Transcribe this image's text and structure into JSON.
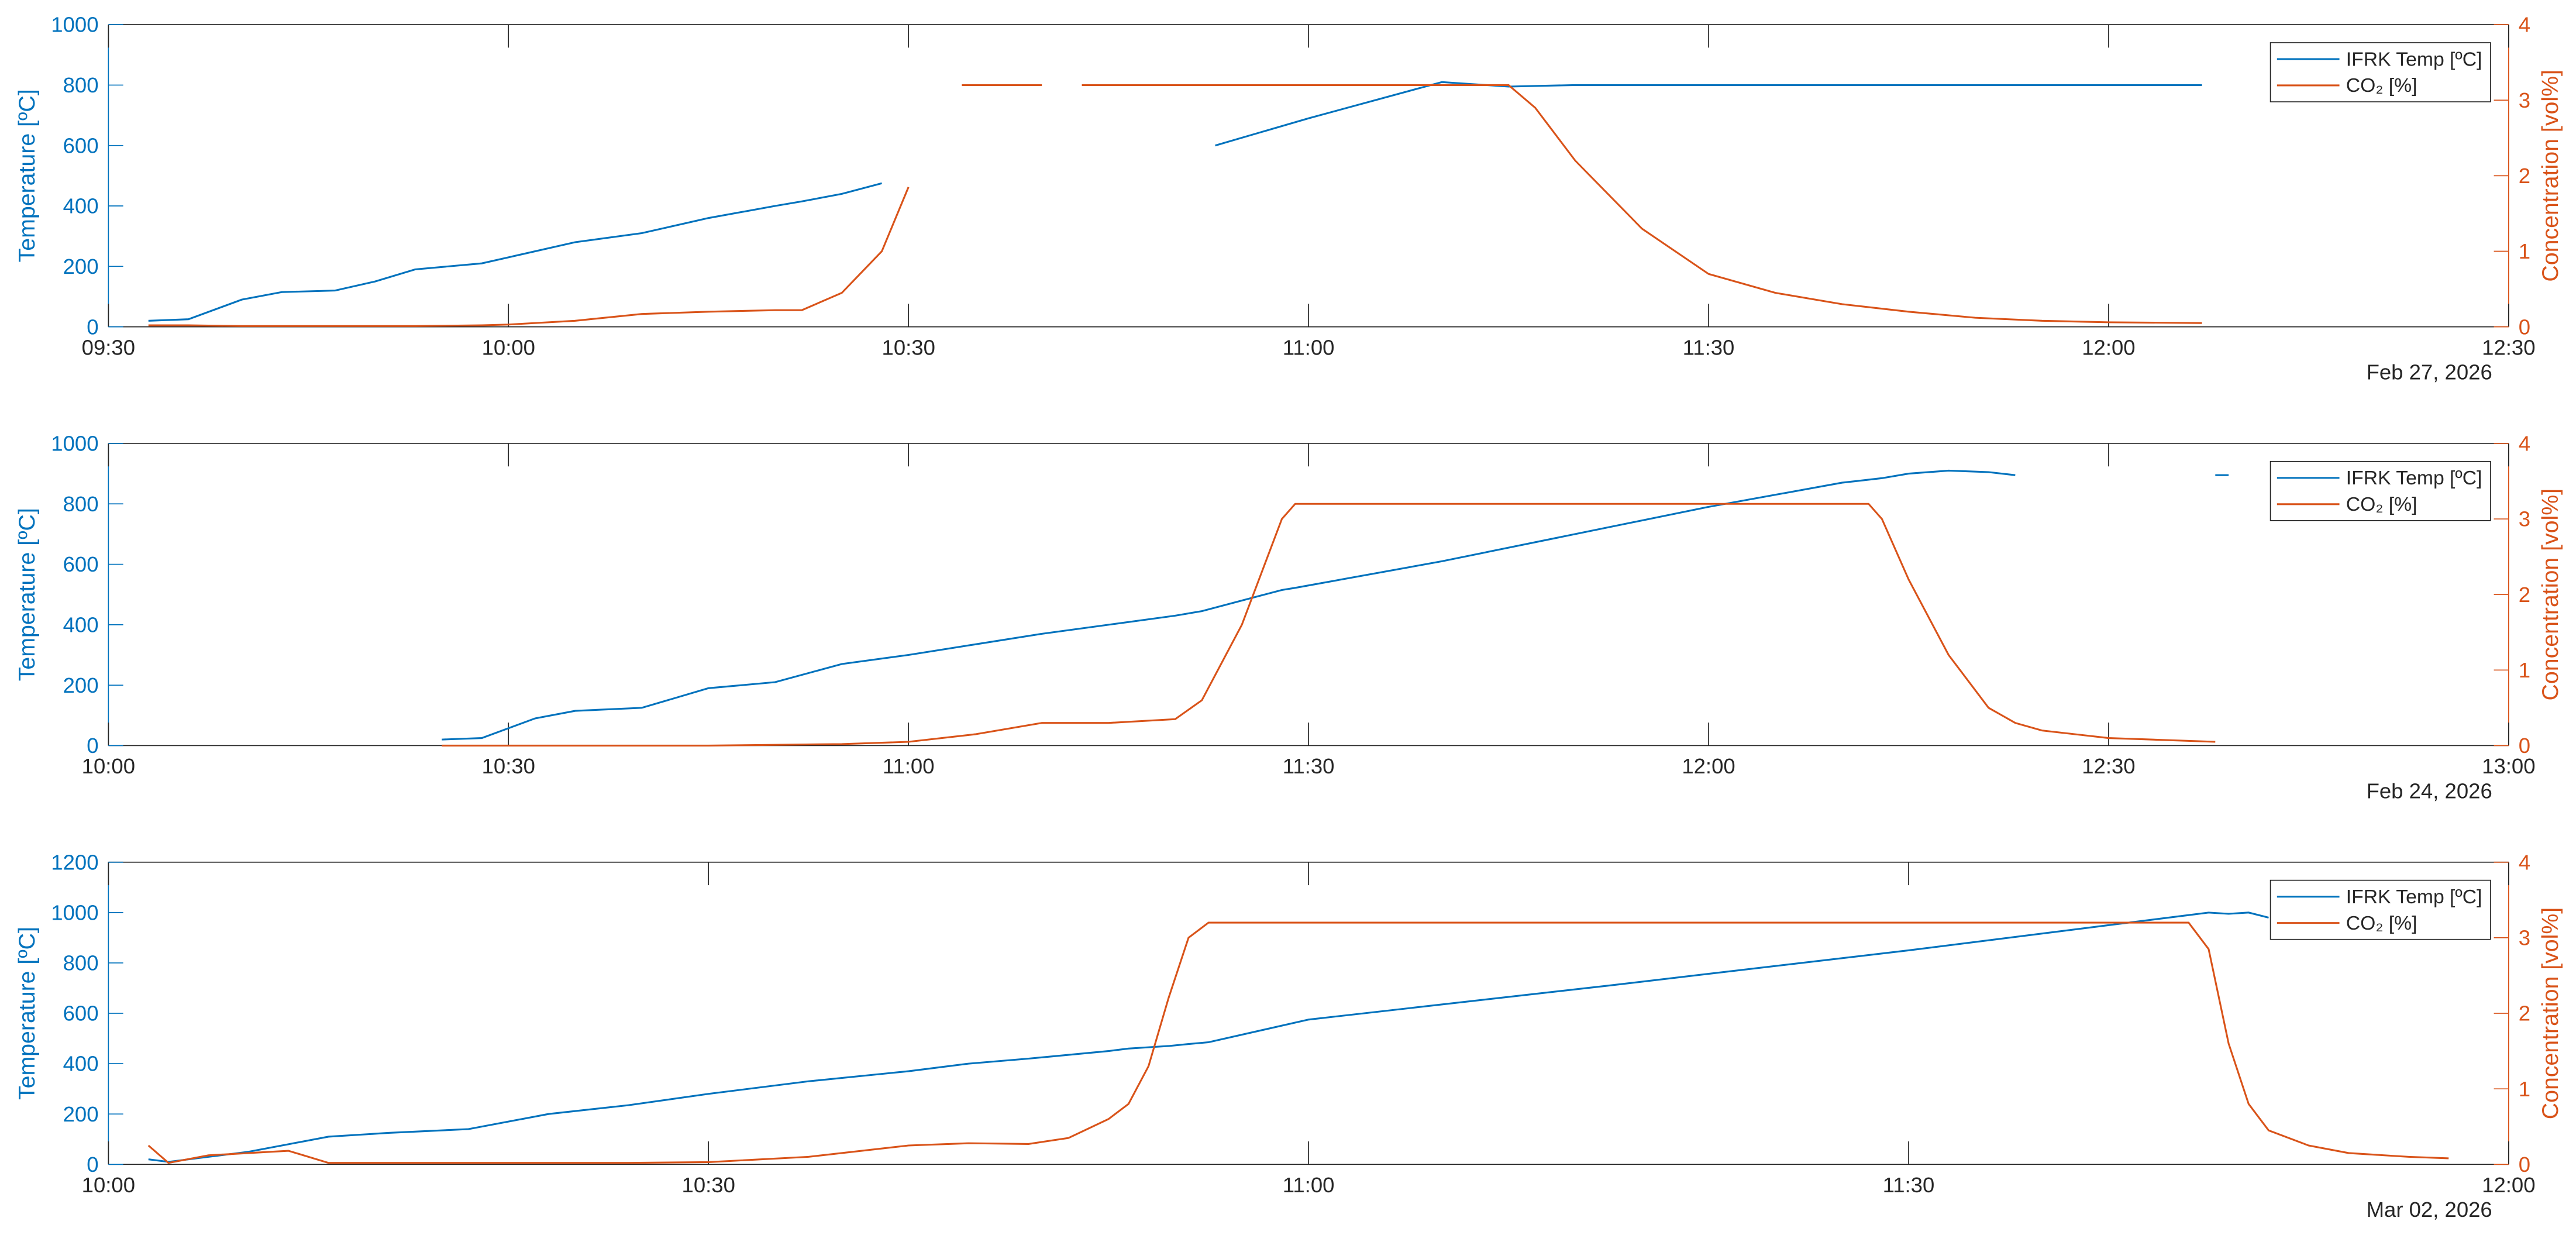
{
  "chart_data": [
    {
      "type": "line",
      "ylabel": "Temperature [ºC]",
      "y2label": "Concentration [vol%]",
      "date_label": "Feb 27, 2026",
      "xlim": [
        "09:30",
        "12:30"
      ],
      "xticks": [
        "09:30",
        "10:00",
        "10:30",
        "11:00",
        "11:30",
        "12:00",
        "12:30"
      ],
      "ylim": [
        0,
        1000
      ],
      "yticks": [
        0,
        200,
        400,
        600,
        800,
        1000
      ],
      "y2lim": [
        0,
        4
      ],
      "y2ticks": [
        0,
        1,
        2,
        3,
        4
      ],
      "legend": "northeast",
      "x": [
        "09:33",
        "09:36",
        "09:40",
        "09:43",
        "09:47",
        "09:50",
        "09:53",
        "09:58",
        "10:00",
        "10:05",
        "10:10",
        "10:15",
        "10:20",
        "10:22",
        "10:25",
        "10:28",
        "10:30",
        "10:32",
        "10:34",
        "10:40",
        "10:41",
        "10:43",
        "10:53",
        "11:00",
        "11:05",
        "11:10",
        "11:15",
        "11:17",
        "11:20",
        "11:25",
        "11:30",
        "11:35",
        "11:40",
        "11:45",
        "11:50",
        "11:55",
        "12:00",
        "12:07"
      ],
      "series": [
        {
          "name": "IFRK Temp [ºC]",
          "color": "#0072BD",
          "axis": "y",
          "values": [
            20,
            25,
            90,
            115,
            120,
            150,
            190,
            210,
            230,
            280,
            310,
            360,
            400,
            415,
            440,
            475,
            null,
            null,
            null,
            null,
            null,
            null,
            600,
            690,
            750,
            810,
            795,
            797,
            800,
            800,
            800,
            800,
            800,
            800,
            800,
            800,
            800,
            800
          ]
        },
        {
          "name": "CO₂ [%]",
          "color": "#D95319",
          "axis": "y2",
          "values": [
            0.02,
            0.02,
            0.01,
            0.01,
            0.01,
            0.01,
            0.01,
            0.02,
            0.03,
            0.08,
            0.17,
            0.2,
            0.22,
            0.22,
            0.45,
            1.0,
            1.85,
            null,
            3.2,
            3.2,
            null,
            3.2,
            3.2,
            3.2,
            3.2,
            3.2,
            3.2,
            2.9,
            2.2,
            1.3,
            0.7,
            0.45,
            0.3,
            0.2,
            0.12,
            0.08,
            0.06,
            0.05
          ]
        }
      ]
    },
    {
      "type": "line",
      "ylabel": "Temperature [ºC]",
      "y2label": "Concentration [vol%]",
      "date_label": "Feb 24, 2026",
      "xlim": [
        "10:00",
        "13:00"
      ],
      "xticks": [
        "10:00",
        "10:30",
        "11:00",
        "11:30",
        "12:00",
        "12:30",
        "13:00"
      ],
      "ylim": [
        0,
        1000
      ],
      "yticks": [
        0,
        200,
        400,
        600,
        800,
        1000
      ],
      "y2lim": [
        0,
        4
      ],
      "y2ticks": [
        0,
        1,
        2,
        3,
        4
      ],
      "legend": "northeast",
      "x": [
        "10:25",
        "10:28",
        "10:32",
        "10:35",
        "10:40",
        "10:45",
        "10:50",
        "10:55",
        "11:00",
        "11:05",
        "11:10",
        "11:15",
        "11:20",
        "11:22",
        "11:25",
        "11:28",
        "11:29",
        "11:30",
        "11:40",
        "11:50",
        "12:00",
        "12:10",
        "12:12",
        "12:13",
        "12:15",
        "12:18",
        "12:21",
        "12:23",
        "12:25",
        "12:30",
        "12:38",
        "12:39"
      ],
      "series": [
        {
          "name": "IFRK Temp [ºC]",
          "color": "#0072BD",
          "axis": "y",
          "values": [
            20,
            25,
            90,
            115,
            125,
            190,
            210,
            270,
            300,
            335,
            370,
            400,
            430,
            445,
            480,
            515,
            522,
            530,
            610,
            700,
            790,
            870,
            880,
            885,
            900,
            910,
            905,
            895,
            null,
            null,
            895,
            895
          ]
        },
        {
          "name": "CO₂ [%]",
          "color": "#D95319",
          "axis": "y2",
          "values": [
            0,
            0,
            0,
            0,
            0,
            0,
            0.01,
            0.02,
            0.05,
            0.15,
            0.3,
            0.3,
            0.35,
            0.6,
            1.6,
            3.0,
            3.2,
            3.2,
            3.2,
            3.2,
            3.2,
            3.2,
            3.2,
            3.0,
            2.2,
            1.2,
            0.5,
            0.3,
            0.2,
            0.1,
            0.05,
            null
          ]
        }
      ]
    },
    {
      "type": "line",
      "ylabel": "Temperature [ºC]",
      "y2label": "Concentration [vol%]",
      "date_label": "Mar 02, 2026",
      "xlim": [
        "10:00",
        "12:00"
      ],
      "xticks": [
        "10:00",
        "10:30",
        "11:00",
        "11:30",
        "12:00"
      ],
      "ylim": [
        0,
        1200
      ],
      "yticks": [
        0,
        200,
        400,
        600,
        800,
        1000,
        1200
      ],
      "y2lim": [
        0,
        4
      ],
      "y2ticks": [
        0,
        1,
        2,
        3,
        4
      ],
      "legend": "northeast",
      "x": [
        "10:02",
        "10:03",
        "10:05",
        "10:07",
        "10:09",
        "10:11",
        "10:14",
        "10:18",
        "10:22",
        "10:26",
        "10:30",
        "10:35",
        "10:40",
        "10:43",
        "10:46",
        "10:48",
        "10:50",
        "10:51",
        "10:52",
        "10:53",
        "10:54",
        "10:55",
        "11:00",
        "11:15",
        "11:30",
        "11:41",
        "11:44",
        "11:45",
        "11:46",
        "11:47",
        "11:48",
        "11:50",
        "11:52",
        "11:55",
        "11:57"
      ],
      "series": [
        {
          "name": "IFRK Temp [ºC]",
          "color": "#0072BD",
          "axis": "y",
          "values": [
            20,
            10,
            30,
            50,
            80,
            110,
            125,
            140,
            200,
            235,
            280,
            330,
            370,
            400,
            420,
            435,
            450,
            460,
            465,
            470,
            478,
            485,
            575,
            710,
            850,
            960,
            990,
            1000,
            995,
            1000,
            980,
            null,
            null,
            null,
            null
          ]
        },
        {
          "name": "CO₂ [%]",
          "color": "#D95319",
          "axis": "y2",
          "values": [
            0.25,
            0.02,
            0.12,
            0.15,
            0.18,
            0.02,
            0.02,
            0.02,
            0.02,
            0.02,
            0.03,
            0.1,
            0.25,
            0.28,
            0.27,
            0.35,
            0.6,
            0.8,
            1.3,
            2.2,
            3.0,
            3.2,
            3.2,
            3.2,
            3.2,
            3.2,
            3.2,
            2.85,
            1.6,
            0.8,
            0.45,
            0.25,
            0.15,
            0.1,
            0.08
          ]
        }
      ]
    }
  ]
}
